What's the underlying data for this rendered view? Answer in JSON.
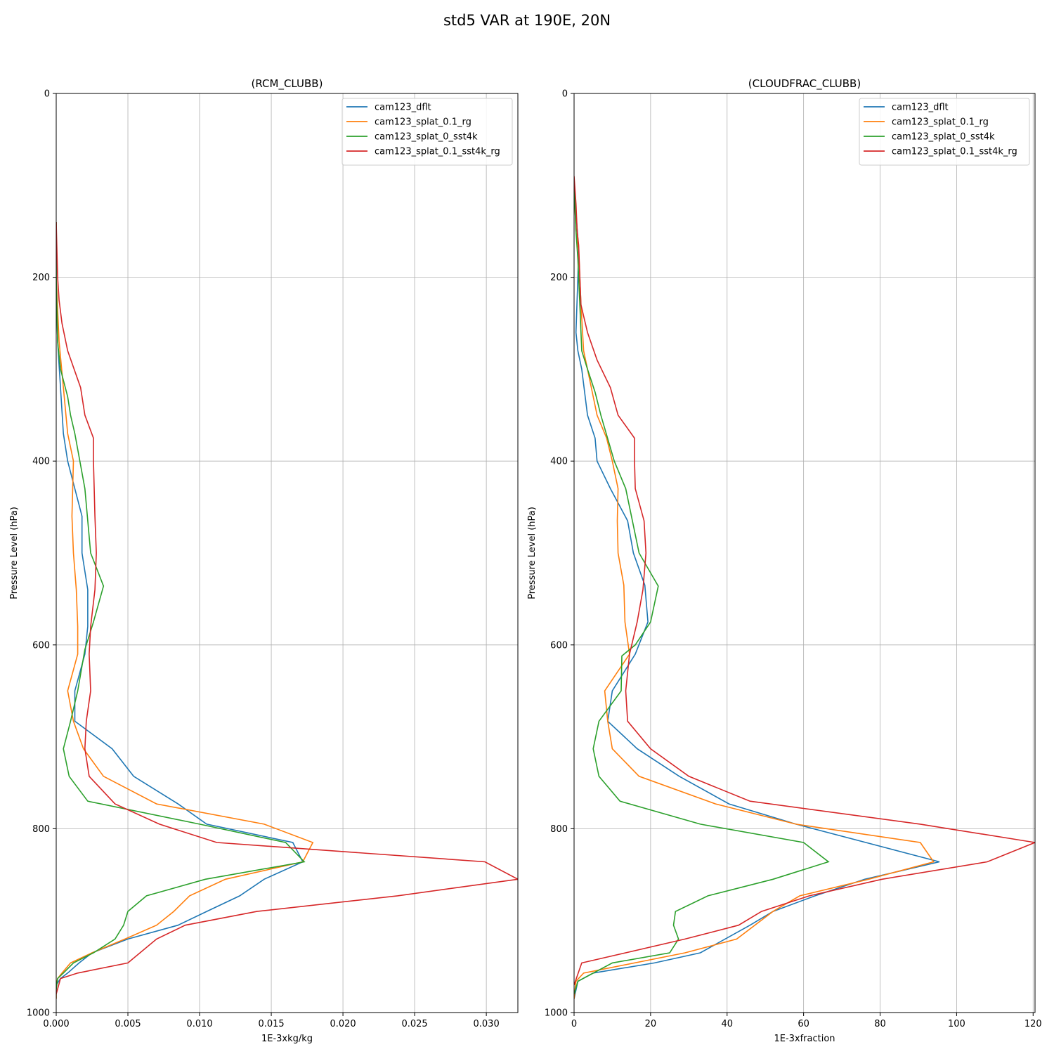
{
  "figure": {
    "suptitle": "std5 VAR at 190E, 20N"
  },
  "chart_data": [
    {
      "type": "line",
      "title": "(RCM_CLUBB)",
      "xlabel": "1E-3xkg/kg",
      "ylabel": "Pressure Level (hPa)",
      "xlim": [
        0,
        0.0322
      ],
      "ylim": [
        1000,
        0
      ],
      "y_inverted": true,
      "grid": true,
      "legend_placement": "upper right",
      "xticks": [
        0,
        0.005,
        0.01,
        0.015,
        0.02,
        0.025,
        0.03
      ],
      "xtick_labels": [
        "0.000",
        "0.005",
        "0.010",
        "0.015",
        "0.020",
        "0.025",
        "0.030"
      ],
      "yticks": [
        0,
        200,
        400,
        600,
        800,
        1000
      ],
      "ytick_labels": [
        "0",
        "200",
        "400",
        "600",
        "800",
        "1000"
      ],
      "series": [
        {
          "name": "cam123_dflt",
          "color": "#1f77b4",
          "x": [
            0,
            0,
            0.0001,
            0.0003,
            0.0005,
            0.0008,
            0.0018,
            0.0018,
            0.0022,
            0.0022,
            0.002,
            0.0013,
            0.0013,
            0.0039,
            0.0054,
            0.0085,
            0.0105,
            0.0165,
            0.0172,
            0.0145,
            0.0128,
            0.0105,
            0.0085,
            0.005,
            0.0025,
            0.0016,
            0.0008,
            0.0003,
            0,
            0
          ],
          "y": [
            140,
            200,
            270,
            320,
            370,
            400,
            460,
            500,
            540,
            580,
            610,
            650,
            683,
            713,
            743,
            773,
            795,
            815,
            836,
            855,
            873,
            890,
            905,
            920,
            935,
            946,
            957,
            963,
            970,
            985
          ]
        },
        {
          "name": "cam123_splat_0.1_rg",
          "color": "#ff7f0e",
          "x": [
            0,
            0,
            0.0002,
            0.0005,
            0.0008,
            0.0012,
            0.0011,
            0.0012,
            0.0014,
            0.0015,
            0.0015,
            0.0008,
            0.0012,
            0.0019,
            0.0033,
            0.007,
            0.0145,
            0.0179,
            0.0172,
            0.0118,
            0.0093,
            0.0082,
            0.007,
            0.0048,
            0.0025,
            0.001,
            0.0004,
            0.0001,
            0,
            0
          ],
          "y": [
            140,
            200,
            270,
            320,
            370,
            400,
            460,
            500,
            540,
            580,
            610,
            650,
            683,
            713,
            743,
            773,
            795,
            815,
            836,
            855,
            873,
            890,
            905,
            920,
            935,
            946,
            957,
            963,
            970,
            985
          ]
        },
        {
          "name": "cam123_splat_0_sst4k",
          "color": "#2ca02c",
          "x": [
            0,
            0,
            0.0001,
            0.0003,
            0.0008,
            0.001,
            0.0013,
            0.002,
            0.0024,
            0.0033,
            0.0026,
            0.002,
            0.0015,
            0.001,
            0.0005,
            0.0009,
            0.0022,
            0.01,
            0.016,
            0.0173,
            0.0104,
            0.0063,
            0.005,
            0.0047,
            0.0041,
            0.0026,
            0.0012,
            0.0005,
            0.0001,
            0
          ],
          "y": [
            140,
            200,
            270,
            300,
            330,
            350,
            370,
            430,
            500,
            536,
            575,
            605,
            650,
            683,
            713,
            743,
            770,
            795,
            815,
            836,
            855,
            873,
            890,
            905,
            920,
            935,
            946,
            957,
            963,
            975
          ]
        },
        {
          "name": "cam123_splat_0.1_sst4k_rg",
          "color": "#d62728",
          "x": [
            0,
            0.0001,
            0.0002,
            0.0004,
            0.0008,
            0.0017,
            0.002,
            0.0026,
            0.0026,
            0.0027,
            0.0028,
            0.0027,
            0.0024,
            0.0023,
            0.0024,
            0.0021,
            0.002,
            0.0023,
            0.0041,
            0.0072,
            0.0112,
            0.0299,
            0.0322,
            0.0238,
            0.014,
            0.009,
            0.007,
            0.005,
            0.0015,
            0.0003,
            0
          ],
          "y": [
            140,
            200,
            225,
            250,
            280,
            320,
            350,
            375,
            400,
            460,
            500,
            540,
            580,
            610,
            650,
            683,
            713,
            743,
            773,
            795,
            815,
            836,
            855,
            873,
            890,
            905,
            920,
            946,
            957,
            963,
            980
          ]
        }
      ]
    },
    {
      "type": "line",
      "title": "(CLOUDFRAC_CLUBB)",
      "xlabel": "1E-3xfraction",
      "ylabel": "Pressure Level (hPa)",
      "xlim": [
        0,
        120.5
      ],
      "ylim": [
        1000,
        0
      ],
      "y_inverted": true,
      "grid": true,
      "legend_placement": "upper right",
      "xticks": [
        0,
        20,
        40,
        60,
        80,
        100,
        120
      ],
      "xtick_labels": [
        "0",
        "20",
        "40",
        "60",
        "80",
        "100",
        "120"
      ],
      "yticks": [
        0,
        200,
        400,
        600,
        800,
        1000
      ],
      "ytick_labels": [
        "0",
        "200",
        "400",
        "600",
        "800",
        "1000"
      ],
      "series": [
        {
          "name": "cam123_dflt",
          "color": "#1f77b4",
          "x": [
            0,
            0.5,
            1.2,
            1.0,
            0.5,
            1.0,
            2.0,
            3.5,
            5.5,
            6.0,
            9.5,
            14.0,
            15.5,
            18.5,
            19.3,
            16.0,
            10.0,
            8.8,
            16.5,
            27.5,
            40.5,
            58.0,
            95.5,
            76.0,
            63.0,
            52.0,
            46.0,
            33.0,
            21.0,
            5.0,
            1.0,
            0
          ],
          "y": [
            100,
            130,
            170,
            200,
            260,
            280,
            300,
            350,
            375,
            400,
            430,
            465,
            500,
            535,
            575,
            610,
            650,
            683,
            713,
            743,
            773,
            795,
            836,
            855,
            873,
            890,
            905,
            935,
            946,
            957,
            966,
            985
          ]
        },
        {
          "name": "cam123_splat_0.1_rg",
          "color": "#ff7f0e",
          "x": [
            0,
            0.5,
            1.2,
            1.5,
            1.8,
            2.5,
            3.5,
            6.0,
            8.5,
            10.0,
            11.5,
            11.3,
            11.5,
            13.0,
            13.3,
            14.5,
            8.0,
            8.8,
            10.0,
            17.0,
            37.0,
            58.0,
            90.5,
            94.0,
            77.0,
            59.0,
            52.0,
            42.5,
            29.0,
            2.5,
            0.5,
            0
          ],
          "y": [
            100,
            150,
            170,
            200,
            230,
            280,
            300,
            350,
            375,
            400,
            430,
            465,
            500,
            535,
            575,
            610,
            650,
            683,
            713,
            743,
            773,
            795,
            815,
            836,
            855,
            873,
            890,
            920,
            935,
            957,
            966,
            985
          ]
        },
        {
          "name": "cam123_splat_0_sst4k",
          "color": "#2ca02c",
          "x": [
            0,
            0.5,
            1.0,
            1.5,
            2.0,
            3.5,
            5.5,
            7.0,
            10.5,
            13.5,
            17.0,
            22.0,
            20.0,
            16.0,
            12.5,
            12.3,
            6.5,
            5.0,
            6.5,
            12.0,
            33.0,
            60.0,
            66.5,
            52.0,
            35.0,
            26.5,
            26.0,
            27.3,
            25.0,
            10.0,
            1.0,
            0
          ],
          "y": [
            100,
            150,
            180,
            230,
            280,
            300,
            325,
            350,
            400,
            430,
            500,
            536,
            575,
            600,
            612,
            650,
            683,
            713,
            743,
            770,
            795,
            815,
            836,
            855,
            873,
            890,
            905,
            920,
            935,
            946,
            966,
            980
          ]
        },
        {
          "name": "cam123_splat_0.1_sst4k_rg",
          "color": "#d62728",
          "x": [
            0,
            0.5,
            0.8,
            1.2,
            1.5,
            1.8,
            3.5,
            6.0,
            9.5,
            11.5,
            15.8,
            15.8,
            16.0,
            18.3,
            18.8,
            18.0,
            16.5,
            14.5,
            13.5,
            14.0,
            20.0,
            30.0,
            46.0,
            90.5,
            120.5,
            108.0,
            80.5,
            61.5,
            49.0,
            43.0,
            29.0,
            2.0,
            0
          ],
          "y": [
            90,
            120,
            150,
            165,
            200,
            230,
            260,
            290,
            320,
            350,
            375,
            400,
            430,
            465,
            500,
            540,
            575,
            610,
            650,
            683,
            713,
            743,
            770,
            795,
            815,
            836,
            855,
            873,
            890,
            905,
            920,
            946,
            970
          ]
        }
      ]
    }
  ]
}
